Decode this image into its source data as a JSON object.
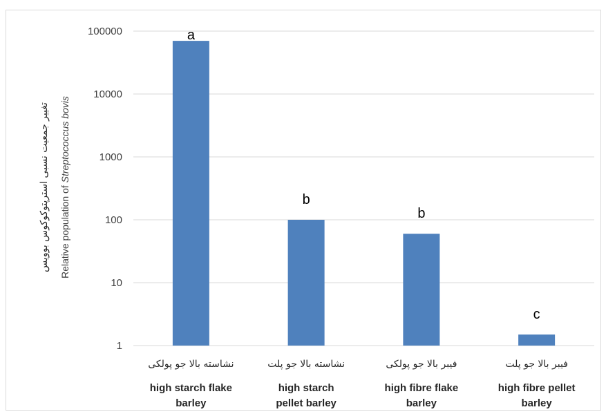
{
  "chart_data": {
    "type": "bar",
    "y_scale": "log",
    "ylim": [
      1,
      100000
    ],
    "y_ticks": [
      "1",
      "10",
      "100",
      "1000",
      "10000",
      "100000"
    ],
    "grid": true,
    "bar_color": "#4f81bd",
    "ylabel_fa": "تغییر جمعیت نسبی استرپتوکوکوس بوویس",
    "ylabel_en_prefix": "Relative population of ",
    "ylabel_en_species": "Streptococcus bovis",
    "categories": [
      {
        "fa": "نشاسته بالا جو پولکی",
        "en": [
          "high starch  flake",
          "barley"
        ]
      },
      {
        "fa": "نشاسته بالا جو پلت",
        "en": [
          "high starch",
          "pellet barley"
        ]
      },
      {
        "fa": "فیبر بالا جو پولکی",
        "en": [
          "high fibre  flake",
          "barley"
        ]
      },
      {
        "fa": "فیبر بالا جو پلت",
        "en": [
          "high fibre  pellet",
          "barley"
        ]
      }
    ],
    "values": [
      70000,
      100,
      60,
      1.5
    ],
    "data_labels": [
      "a",
      "b",
      "b",
      "c"
    ]
  }
}
